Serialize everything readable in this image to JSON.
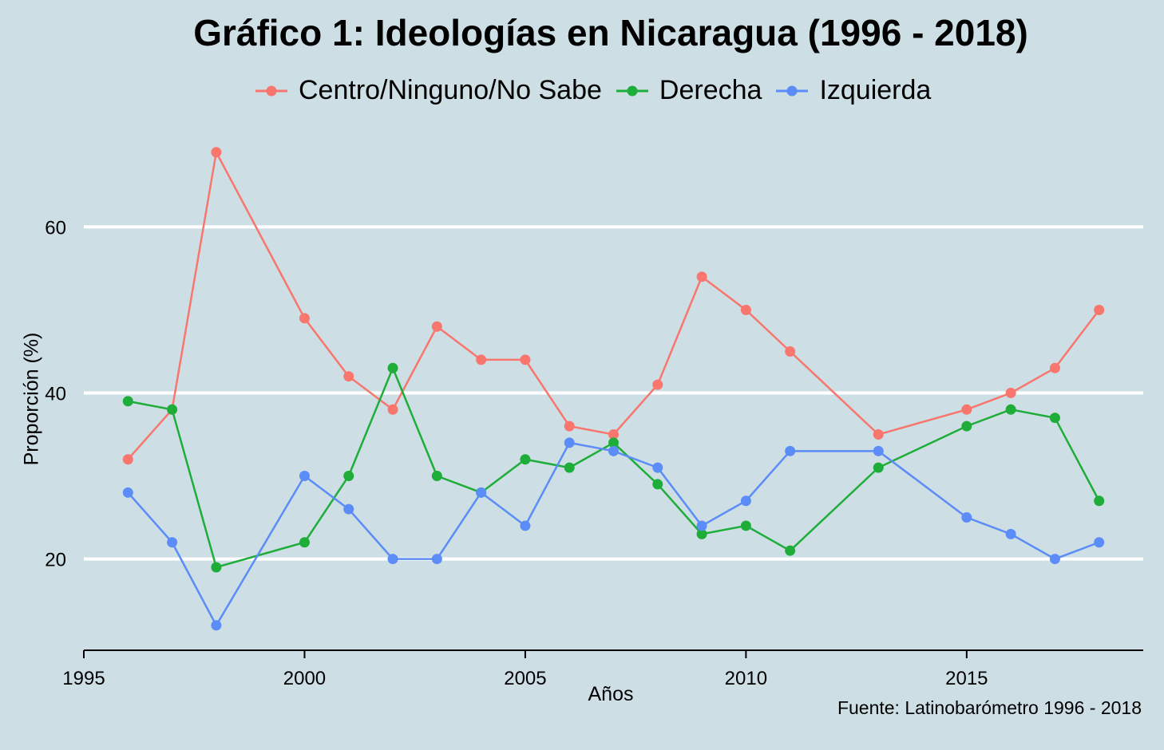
{
  "chart_data": {
    "type": "line",
    "title": "Gráfico 1: Ideologías en Nicaragua (1996 - 2018)",
    "xlabel": "Años",
    "ylabel": "Proporción (%)",
    "caption": "Fuente: Latinobarómetro 1996 - 2018",
    "legend_position": "top",
    "grid": "horizontal major lines",
    "xlim": [
      1995,
      2019
    ],
    "ylim": [
      9,
      71
    ],
    "x_ticks": [
      1995,
      2000,
      2005,
      2010,
      2015
    ],
    "y_ticks": [
      20,
      40,
      60
    ],
    "x_tick_labels": [
      "1995",
      "2000",
      "2005",
      "2010",
      "2015"
    ],
    "y_tick_labels": [
      "20",
      "40",
      "60"
    ],
    "series": [
      {
        "name": "Centro/Ninguno/No Sabe",
        "color": "#f8766d",
        "x": [
          1996,
          1997,
          1998,
          2000,
          2001,
          2002,
          2003,
          2004,
          2005,
          2006,
          2007,
          2008,
          2009,
          2010,
          2011,
          2013,
          2015,
          2016,
          2017,
          2018
        ],
        "y": [
          32,
          38,
          69,
          49,
          42,
          38,
          48,
          44,
          44,
          36,
          35,
          41,
          54,
          50,
          45,
          35,
          38,
          40,
          43,
          50
        ]
      },
      {
        "name": "Derecha",
        "color": "#1fad3a",
        "x": [
          1996,
          1997,
          1998,
          2000,
          2001,
          2002,
          2003,
          2004,
          2005,
          2006,
          2007,
          2008,
          2009,
          2010,
          2011,
          2013,
          2015,
          2016,
          2017,
          2018
        ],
        "y": [
          39,
          38,
          19,
          22,
          30,
          43,
          30,
          28,
          32,
          31,
          34,
          29,
          23,
          24,
          21,
          31,
          36,
          38,
          37,
          27
        ]
      },
      {
        "name": "Izquierda",
        "color": "#5b8cf7",
        "x": [
          1996,
          1997,
          1998,
          2000,
          2001,
          2002,
          2003,
          2004,
          2005,
          2006,
          2007,
          2008,
          2009,
          2010,
          2011,
          2013,
          2015,
          2016,
          2017,
          2018
        ],
        "y": [
          28,
          22,
          12,
          30,
          26,
          20,
          20,
          28,
          24,
          34,
          33,
          31,
          24,
          27,
          33,
          33,
          25,
          23,
          20,
          22
        ]
      }
    ]
  }
}
